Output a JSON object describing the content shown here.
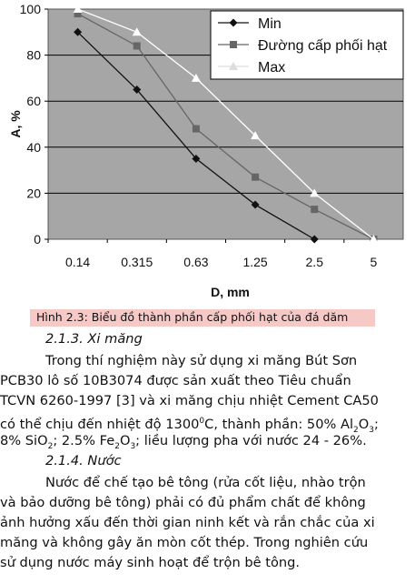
{
  "chart_data": {
    "type": "line",
    "x": [
      "0.14",
      "0.315",
      "0.63",
      "1.25",
      "2.5",
      "5"
    ],
    "series": [
      {
        "name": "Min",
        "values": [
          90,
          65,
          35,
          15,
          0,
          null
        ],
        "color": "#111111",
        "marker": "diamond"
      },
      {
        "name": "Đường cấp phối hạt",
        "values": [
          98,
          84,
          48,
          27,
          13,
          0
        ],
        "color": "#666666",
        "marker": "square"
      },
      {
        "name": "Max",
        "values": [
          100,
          90,
          70,
          45,
          20,
          0
        ],
        "color": "#ffffff",
        "marker": "triangle"
      }
    ],
    "xlabel": "D, mm",
    "ylabel": "A, %",
    "ylim": [
      0,
      100
    ],
    "yticks": [
      0,
      20,
      40,
      60,
      80,
      100
    ],
    "grid": true,
    "plot_background": "#a6a6a6",
    "legend": "top-right"
  },
  "caption": "Hình 2.3: Biểu đồ thành phần cấp phối hạt của đá dăm",
  "section_cement": "2.1.3. Xi măng",
  "cement_para": {
    "line1": "Trong thí nghiệm này sử dụng xi măng Bút Sơn",
    "line2": "PCB30 lô số 10B3074 được sản xuất theo Tiêu chuẩn",
    "line3": "TCVN 6260-1997 [3] và xi măng chịu nhiệt Cement CA50",
    "line4a": "có thể chịu đến nhiệt độ 1300",
    "line4sup": "0",
    "line4b": "C, thành phần: 50% Al",
    "line4sub1": "2",
    "line4c": "O",
    "line4sub2": "3",
    "line4d": ";",
    "line5a": "8% SiO",
    "line5sub1": "2",
    "line5b": "; 2.5% Fe",
    "line5sub2": "2",
    "line5c": "O",
    "line5sub3": "3",
    "line5d": "; liều lượng pha với nước 24 - 26%."
  },
  "section_water": "2.1.4. Nước",
  "water_para": {
    "line1": "Nước để chế tạo bê tông (rửa cốt liệu, nhào trộn",
    "line2": "và bảo dưỡng bê tông) phải có đủ phẩm chất để không",
    "line3": "ảnh hưởng xấu đến thời gian ninh kết và rắn chắc của xi",
    "line4": "măng và không gây ăn mòn cốt thép. Trong nghiên cứu",
    "line5": "sử dụng nước máy sinh hoạt để trộn bê tông."
  }
}
